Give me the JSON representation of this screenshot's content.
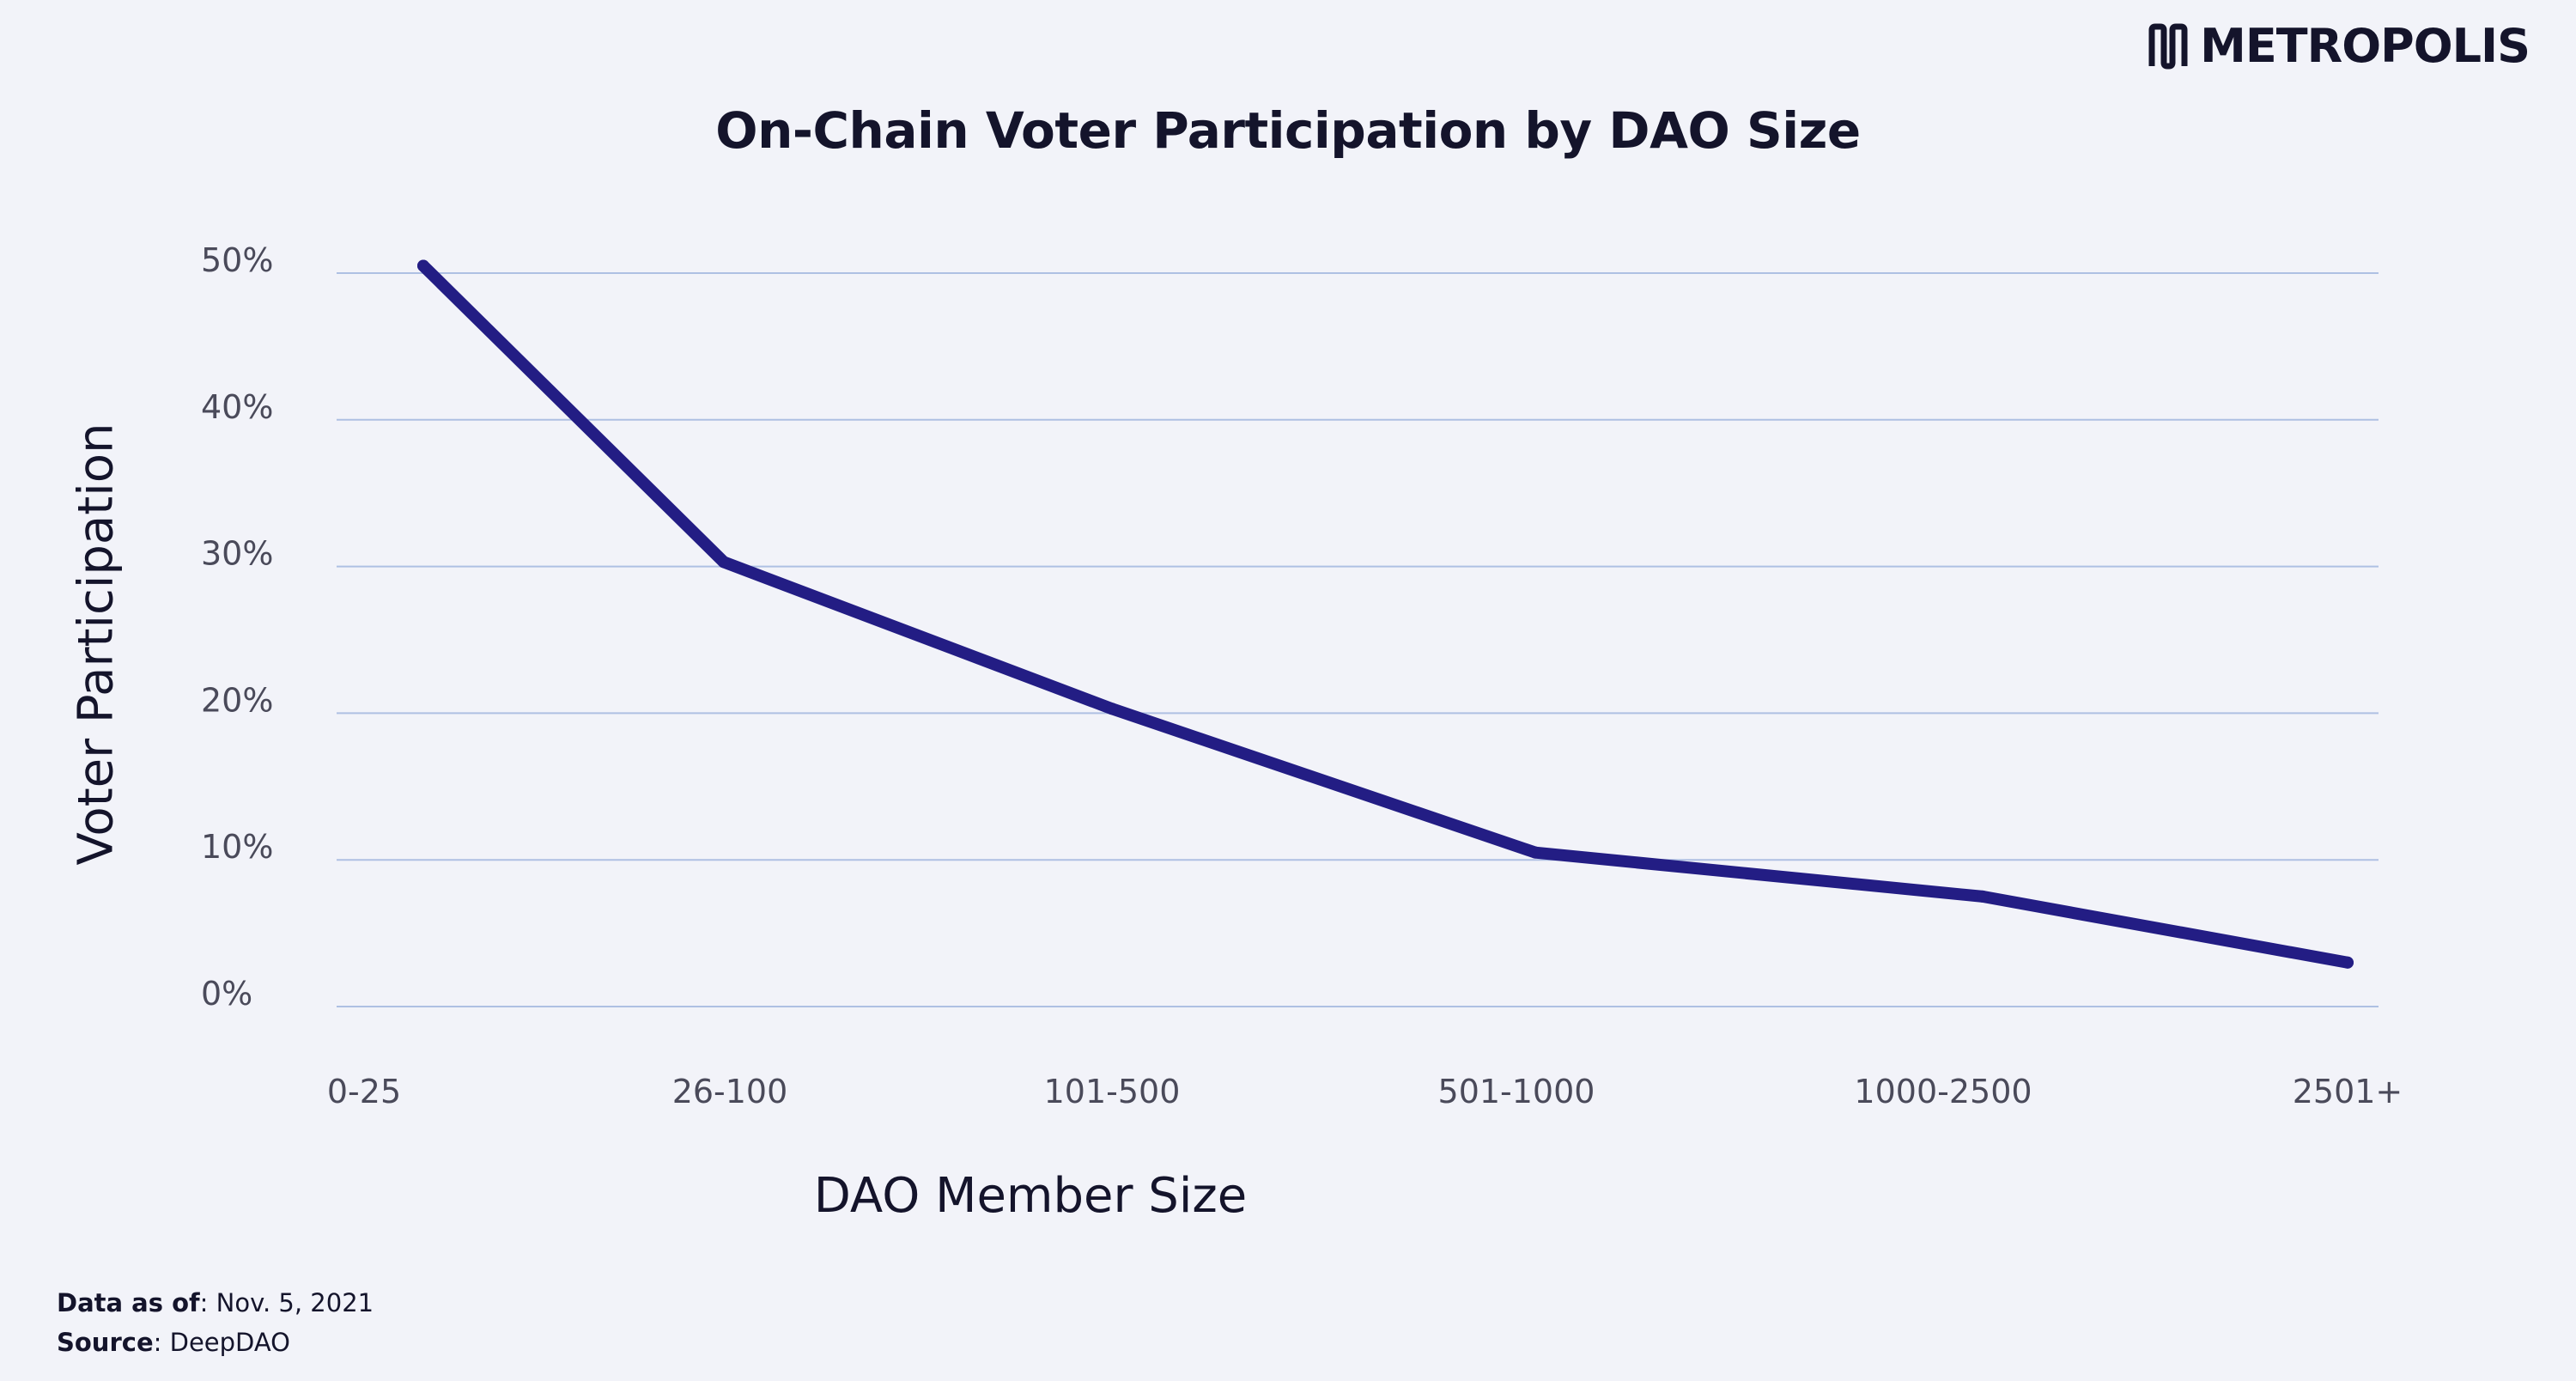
{
  "brand": {
    "name": "METROPOLIS"
  },
  "chart_data": {
    "type": "line",
    "title": "On-Chain Voter Participation by DAO Size",
    "xlabel": "DAO Member Size",
    "ylabel": "Voter Participation",
    "categories": [
      "0-25",
      "26-100",
      "101-500",
      "501-1000",
      "1000-2500",
      "2501+"
    ],
    "y_ticks": [
      "0%",
      "10%",
      "20%",
      "30%",
      "40%",
      "50%"
    ],
    "ylim": [
      0,
      50
    ],
    "grid": true,
    "legend": "none",
    "series": [
      {
        "values": [
          50.5,
          30.3,
          20.3,
          10.5,
          7.5,
          3.0
        ]
      }
    ],
    "colors": {
      "line": "#231d84",
      "grid": "#aec0e3",
      "background": "#f2f3f9"
    }
  },
  "footer": {
    "data_as_of_label": "Data as of",
    "data_as_of_value": ": Nov. 5, 2021",
    "source_label": "Source",
    "source_value": ":  DeepDAO"
  }
}
